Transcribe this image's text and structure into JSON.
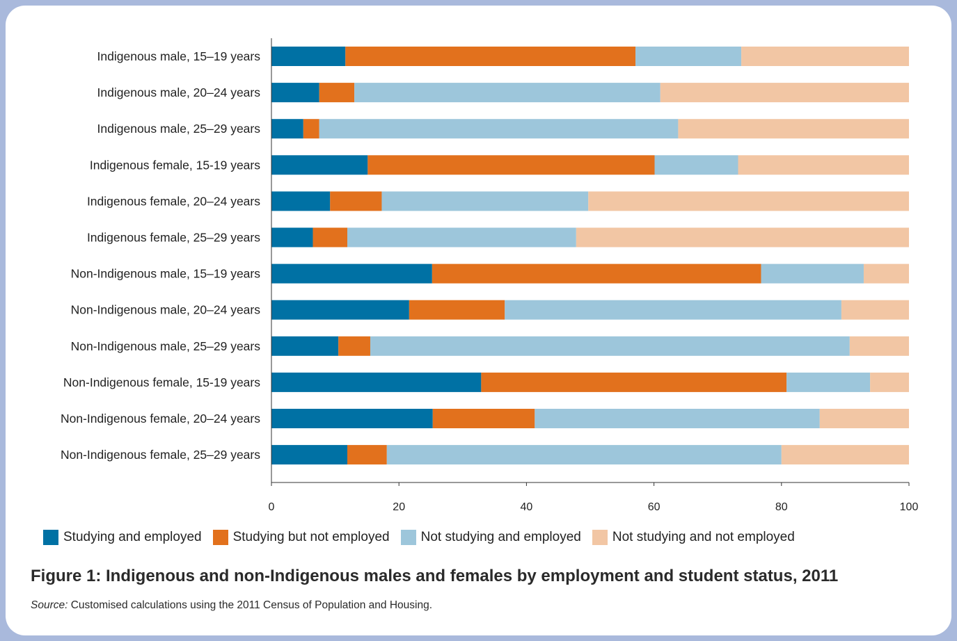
{
  "chart_data": {
    "type": "bar",
    "orientation": "horizontal",
    "stacked": true,
    "categories": [
      "Indigenous male, 15–19 years",
      "Indigenous male, 20–24 years",
      "Indigenous male, 25–29 years",
      "Indigenous female, 15-19 years",
      "Indigenous female, 20–24 years",
      "Indigenous female, 25–29 years",
      "Non-Indigenous male, 15–19 years",
      "Non-Indigenous male, 20–24 years",
      "Non-Indigenous male, 25–29 years",
      "Non-Indigenous female, 15-19 years",
      "Non-Indigenous female, 20–24 years",
      "Non-Indigenous female, 25–29 years"
    ],
    "series": [
      {
        "name": "Studying and employed",
        "color": "#0071a4",
        "values": [
          11.6,
          7.5,
          5.0,
          15.1,
          9.2,
          6.5,
          25.2,
          21.6,
          10.5,
          32.9,
          25.3,
          11.9
        ]
      },
      {
        "name": "Studying but not employed",
        "color": "#e2711d",
        "values": [
          45.5,
          5.5,
          2.5,
          45.0,
          8.1,
          5.4,
          51.6,
          15.0,
          5.0,
          47.9,
          16.0,
          6.2
        ]
      },
      {
        "name": "Not studying and employed",
        "color": "#9dc6db",
        "values": [
          16.6,
          48.0,
          56.3,
          13.1,
          32.4,
          35.9,
          16.1,
          52.8,
          75.2,
          13.1,
          44.7,
          61.9
        ]
      },
      {
        "name": "Not studying and not employed",
        "color": "#f2c6a4",
        "values": [
          26.3,
          39.0,
          36.2,
          26.8,
          50.3,
          52.2,
          7.1,
          10.6,
          9.3,
          6.1,
          14.0,
          20.0
        ]
      }
    ],
    "xlim": [
      0,
      100
    ],
    "xticks": [
      "0",
      "20",
      "40",
      "60",
      "80",
      "100"
    ],
    "xlabel": "",
    "ylabel": "",
    "legend_position": "bottom",
    "grid": false
  },
  "caption": {
    "title": "Figure 1: Indigenous and non-Indigenous males and females by employment and student status, 2011",
    "source_label": "Source:",
    "source_text": " Customised calculations using the 2011 Census of Population and Housing."
  }
}
